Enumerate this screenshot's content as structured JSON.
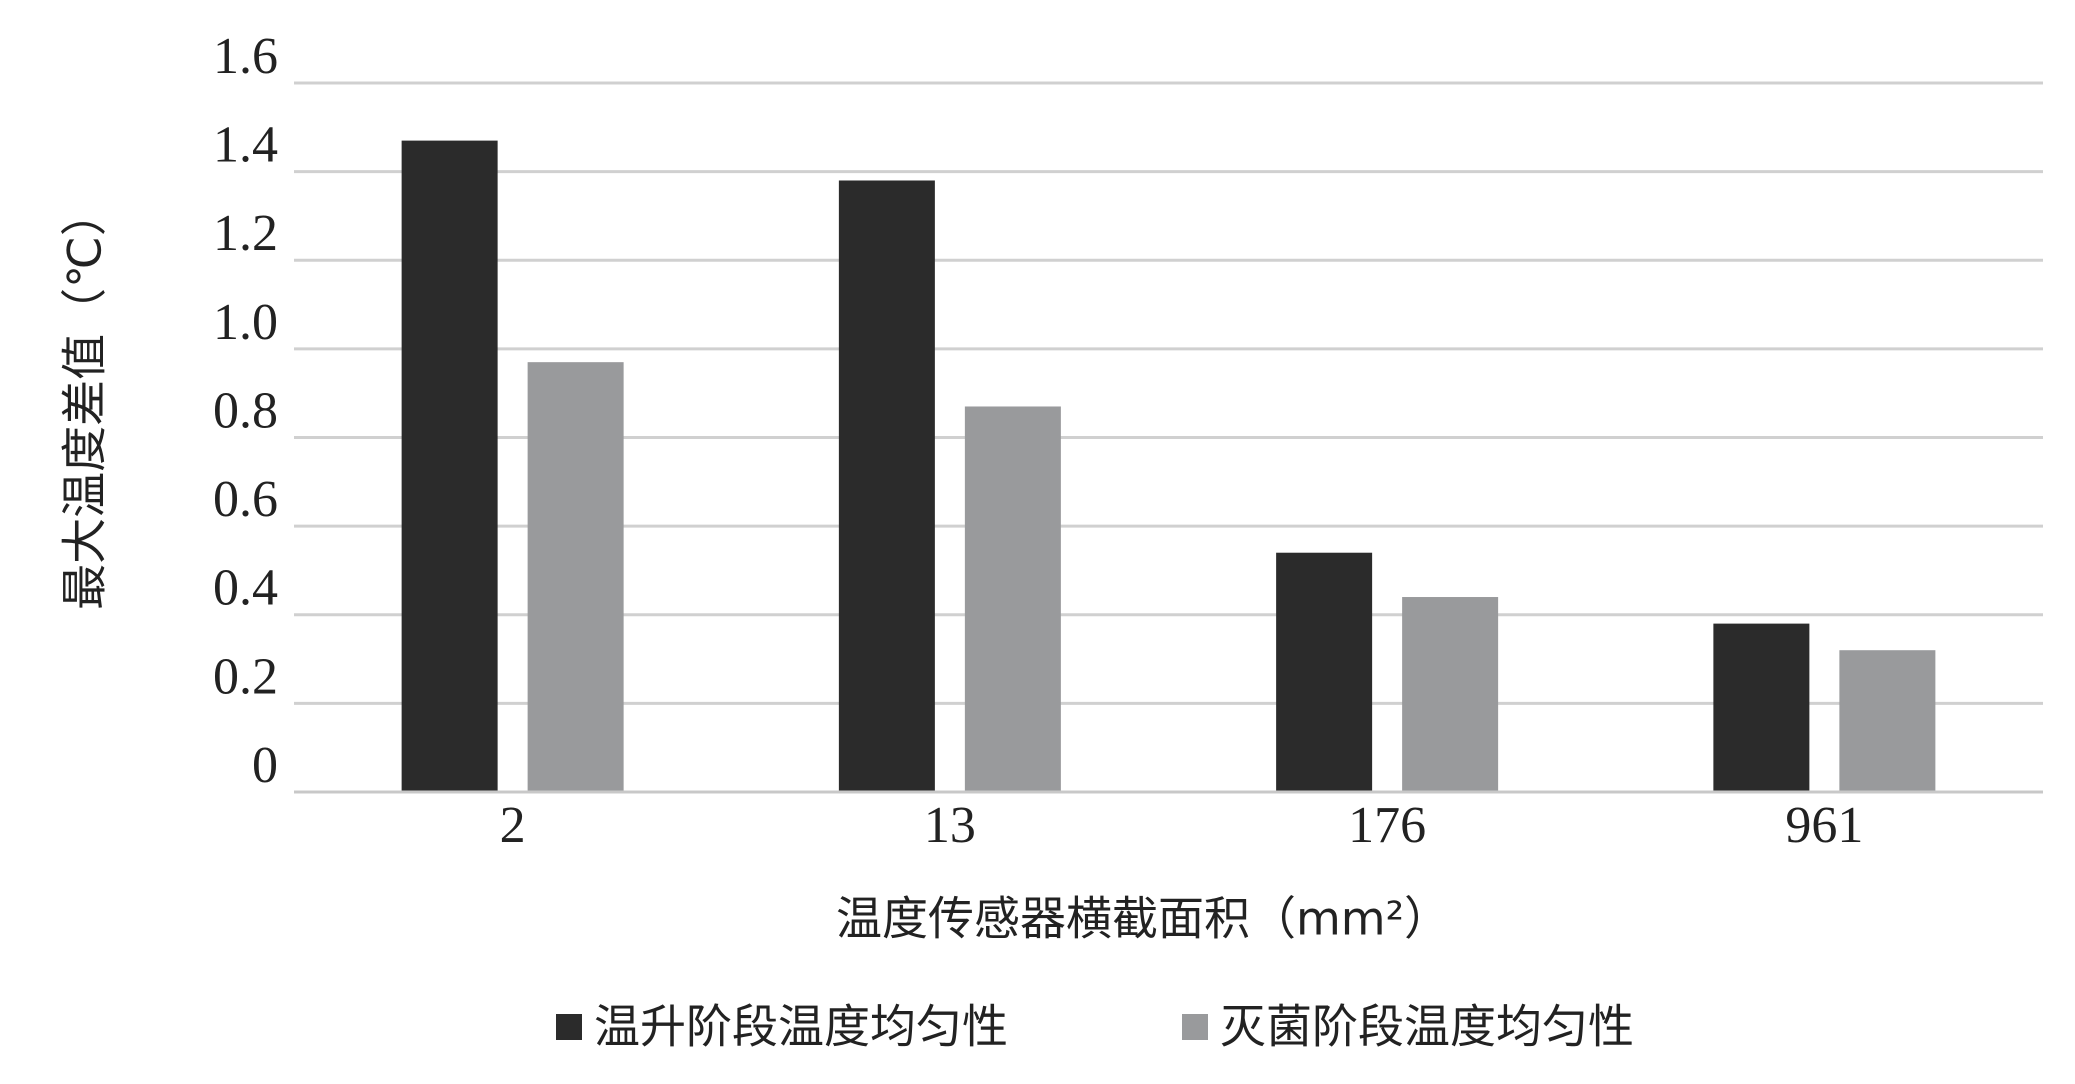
{
  "chart_data": {
    "type": "bar",
    "x_label": "温度传感器横截面积（mm²）",
    "y_label": "最大温度差值（℃）",
    "categories": [
      "2",
      "13",
      "176",
      "961"
    ],
    "series": [
      {
        "name": "温升阶段温度均匀性",
        "color": "#2b2b2b",
        "values": [
          1.47,
          1.38,
          0.54,
          0.38
        ]
      },
      {
        "name": "灭菌阶段温度均匀性",
        "color": "#999a9c",
        "values": [
          0.97,
          0.87,
          0.44,
          0.32
        ]
      }
    ],
    "ylim": [
      0,
      1.6
    ],
    "yticks": [
      0,
      0.2,
      0.4,
      0.6,
      0.8,
      {
        "value": 1.0,
        "label": "1.0"
      },
      1.2,
      1.4,
      1.6
    ],
    "grid": true,
    "legend": "bottom"
  }
}
